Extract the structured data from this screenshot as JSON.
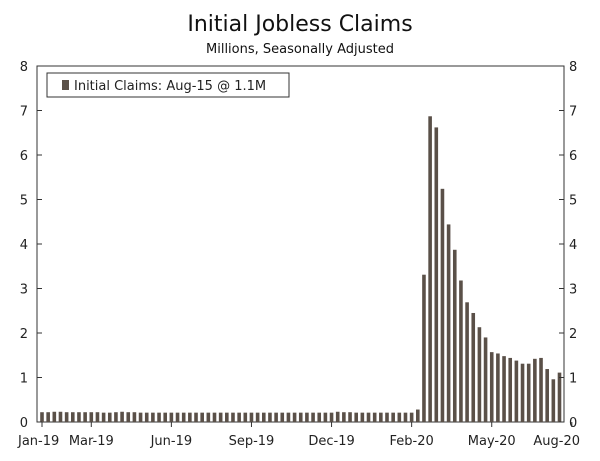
{
  "chart_data": {
    "type": "bar",
    "title": "Initial Jobless Claims",
    "subtitle": "Millions, Seasonally Adjusted",
    "legend": {
      "label": "Initial Claims: Aug-15 @ 1.1M",
      "placement": "top-left"
    },
    "ylim": [
      0,
      8
    ],
    "y_ticks": [
      0,
      1,
      2,
      3,
      4,
      5,
      6,
      7,
      8
    ],
    "x_ticks": [
      "Jan-19",
      "Mar-19",
      "Jun-19",
      "Sep-19",
      "Dec-19",
      "Feb-20",
      "May-20",
      "Aug-20"
    ],
    "x_tick_index": [
      0,
      8,
      21,
      34,
      47,
      60,
      73,
      86
    ],
    "grid": false,
    "bar_color": "#5a5048",
    "values": [
      0.22,
      0.22,
      0.23,
      0.23,
      0.22,
      0.22,
      0.22,
      0.22,
      0.22,
      0.22,
      0.21,
      0.21,
      0.22,
      0.23,
      0.22,
      0.22,
      0.21,
      0.21,
      0.21,
      0.21,
      0.21,
      0.21,
      0.21,
      0.21,
      0.21,
      0.21,
      0.21,
      0.21,
      0.21,
      0.21,
      0.21,
      0.21,
      0.21,
      0.21,
      0.21,
      0.21,
      0.21,
      0.21,
      0.21,
      0.21,
      0.21,
      0.21,
      0.21,
      0.21,
      0.21,
      0.21,
      0.21,
      0.21,
      0.23,
      0.22,
      0.22,
      0.21,
      0.21,
      0.21,
      0.21,
      0.21,
      0.21,
      0.21,
      0.21,
      0.21,
      0.21,
      0.28,
      3.31,
      6.87,
      6.62,
      5.24,
      4.44,
      3.87,
      3.18,
      2.69,
      2.45,
      2.13,
      1.9,
      1.57,
      1.54,
      1.48,
      1.44,
      1.38,
      1.31,
      1.31,
      1.42,
      1.44,
      1.19,
      0.96,
      1.11
    ]
  }
}
